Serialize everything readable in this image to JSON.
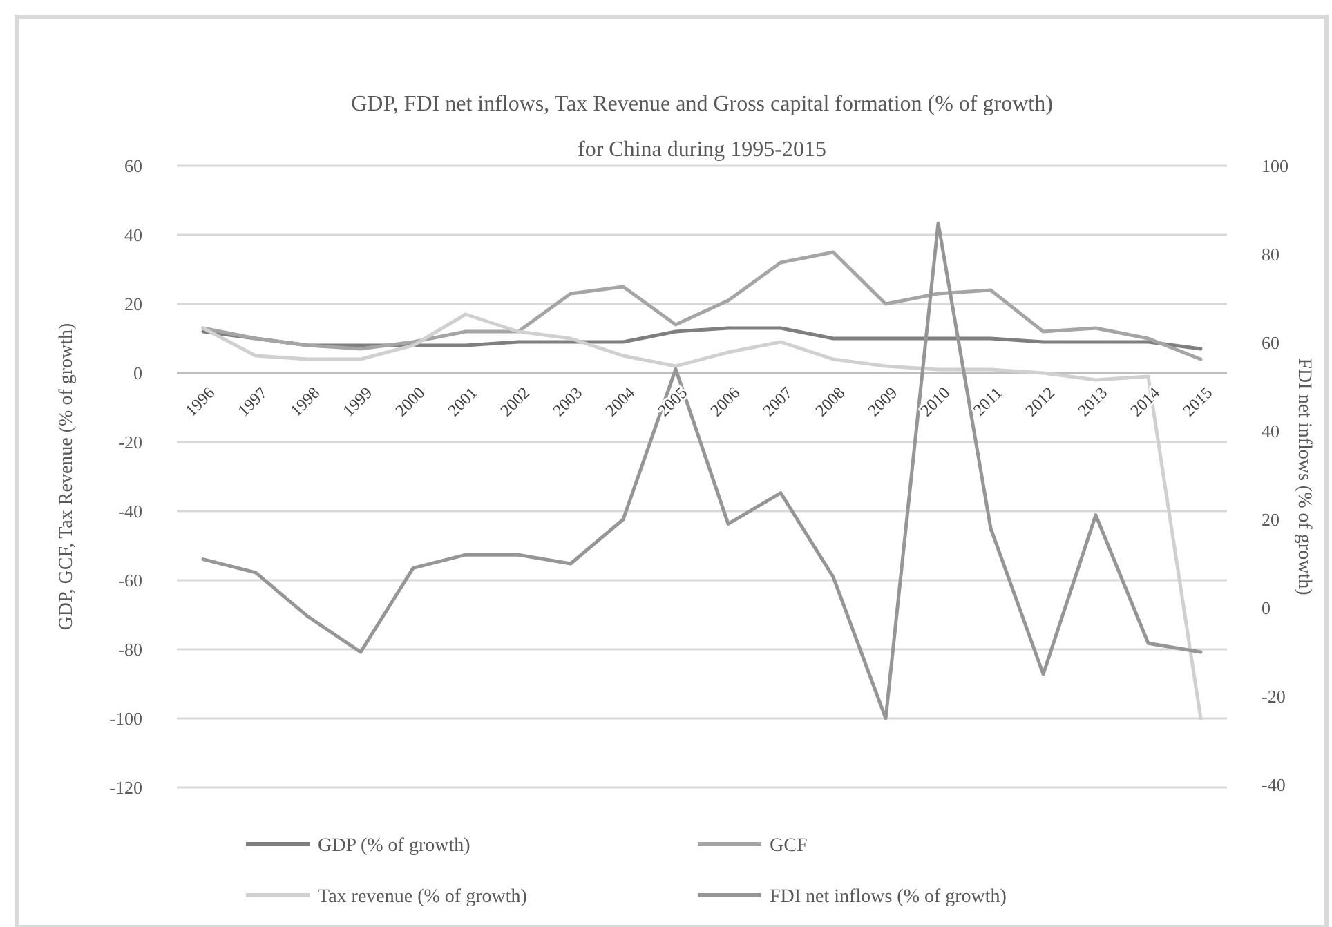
{
  "chart_data": {
    "type": "line",
    "title": "GDP, FDI net inflows, Tax Revenue and Gross capital formation (% of growth) for China during 1995-2015",
    "ylabel": "GDP, GCF, Tax Revenue (% of growth)",
    "y2label": "FDI net inflows (% of growth)",
    "categories": [
      "1996",
      "1997",
      "1998",
      "1999",
      "2000",
      "2001",
      "2002",
      "2003",
      "2004",
      "2005",
      "2006",
      "2007",
      "2008",
      "2009",
      "2010",
      "2011",
      "2012",
      "2013",
      "2014",
      "2015"
    ],
    "series": [
      {
        "name": "GDP (% of growth)",
        "color": "#7f7f7f",
        "values": [
          12,
          10,
          8,
          8,
          8,
          8,
          9,
          9,
          9,
          12,
          13,
          13,
          10,
          10,
          10,
          10,
          9,
          9,
          9,
          7
        ]
      },
      {
        "name": "GCF",
        "color": "#a5a5a5",
        "values": [
          13,
          10,
          8,
          7,
          9,
          12,
          12,
          23,
          25,
          14,
          21,
          32,
          35,
          20,
          23,
          24,
          12,
          13,
          10,
          4
        ]
      },
      {
        "name": "Tax revenue (% of growth)",
        "color": "#d0d0d0",
        "values": [
          13,
          5,
          4,
          4,
          8,
          17,
          12,
          10,
          5,
          2,
          6,
          9,
          4,
          2,
          1,
          1,
          0,
          -2,
          -1,
          -100
        ]
      },
      {
        "name": "FDI net inflows (% of growth)",
        "color": "#969696",
        "axis": "y2",
        "values": [
          11,
          8,
          -2,
          -10,
          9,
          12,
          12,
          10,
          20,
          54,
          19,
          26,
          7,
          -25,
          87,
          18,
          -15,
          21,
          -8,
          -10
        ]
      }
    ],
    "ylim": [
      -120,
      60
    ],
    "yticks": [
      -120,
      -100,
      -80,
      -60,
      -40,
      -20,
      0,
      20,
      40,
      60
    ],
    "y2lim": [
      -40,
      100
    ],
    "y2ticks": [
      -40,
      -20,
      0,
      20,
      40,
      60,
      80,
      100
    ],
    "grid": "y",
    "legend": "bottom",
    "marker": "none",
    "line_style": "solid"
  }
}
